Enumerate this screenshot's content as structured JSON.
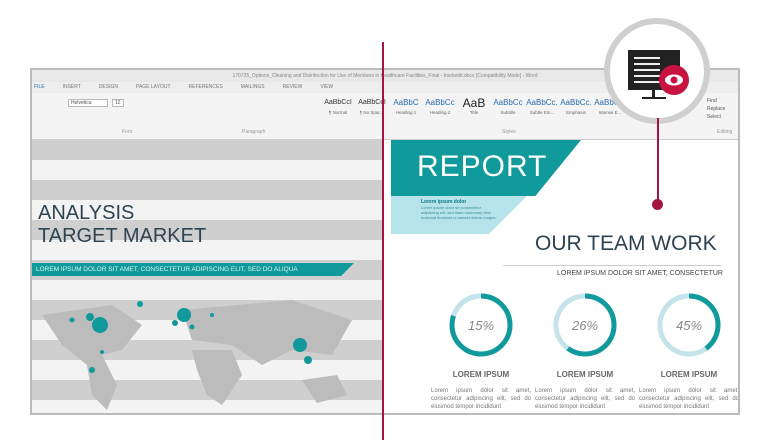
{
  "window": {
    "title": "170725_Options_Cleaning and Disinfection for Use of Members in Healthcare Facilities_Final - trackedit.docx [Compatibility Mode] - Word"
  },
  "tabs": [
    "FILE",
    "INSERT",
    "DESIGN",
    "PAGE LAYOUT",
    "REFERENCES",
    "MAILINGS",
    "REVIEW",
    "VIEW"
  ],
  "ribbon": {
    "font": "Helvetica",
    "size": "12",
    "groups": {
      "font": "Font",
      "paragraph": "Paragraph",
      "styles": "Styles",
      "editing": "Editing"
    },
    "styles": [
      {
        "sample": "AaBbCcI",
        "label": "¶ Normal"
      },
      {
        "sample": "AaBbCcI",
        "label": "¶ No Spac..."
      },
      {
        "sample": "AaBbC",
        "label": "Heading 1"
      },
      {
        "sample": "AaBbCc",
        "label": "Heading 2"
      },
      {
        "sample": "AaB",
        "label": "Title"
      },
      {
        "sample": "AaBbCc",
        "label": "Subtitle"
      },
      {
        "sample": "AaBbCc.",
        "label": "Subtle Em..."
      },
      {
        "sample": "AaBbCc.",
        "label": "Emphasis"
      },
      {
        "sample": "AaBbCc.",
        "label": "Intense E..."
      },
      {
        "sample": "AaBb",
        "label": "Strong"
      }
    ],
    "editing": [
      "Find",
      "Replace",
      "Select"
    ]
  },
  "left": {
    "title1": "ANALYSIS",
    "title2": "TARGET MARKET",
    "band": "LOREM IPSUM DOLOR SIT AMET, CONSECTETUR ADIPISCING ELIT, SED DO  ALIQUA"
  },
  "right": {
    "report": "REPORT",
    "sub_title": "Lorem ipsum dolor",
    "sub_text": "Lorem ipsum dolor sit consectetur adipiscing elit, sed diam nonummy nibh euismod tincidunt ut laoreet dolore magna",
    "team": "OUR TEAM WORK",
    "team_sub": "LOREM IPSUM DOLOR SIT AMET, CONSECTETUR",
    "stats": [
      {
        "value": "15%",
        "label": "LOREM IPSUM",
        "text": "Lorem ipsum dolor sit amet, consectetur adipiscing elit, sed do eiusmod tempor incididunt"
      },
      {
        "value": "26%",
        "label": "LOREM IPSUM",
        "text": "Lorem ipsum dolor sit amet, consectetur adipiscing elit, sed do eiusmod tempor incididunt"
      },
      {
        "value": "45%",
        "label": "LOREM IPSUM",
        "text": "Lorem ipsum dolor sit amet, consectetur adipiscing elit, sed do eiusmod tempor incididunt"
      }
    ]
  },
  "colors": {
    "teal": "#119a9c",
    "light_teal": "#b7e3ea",
    "accent": "#a3143f"
  },
  "icon": "monitor-eye-icon"
}
